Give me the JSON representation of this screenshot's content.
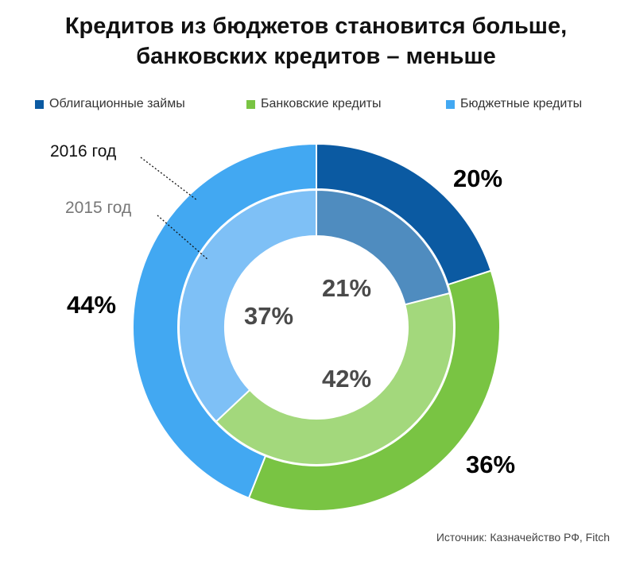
{
  "title_line1": "Кредитов из бюджетов становится больше,",
  "title_line2": "банковских кредитов – меньше",
  "source": "Источник: Казначейство РФ, Fitch",
  "chart_data": {
    "type": "donut",
    "legend": [
      {
        "name": "Облигационные займы",
        "color": "#0b5aa2"
      },
      {
        "name": "Банковские кредиты",
        "color": "#79c443"
      },
      {
        "name": "Бюджетные кредиты",
        "color": "#42a8f2"
      }
    ],
    "categories": [
      "Облигационные займы",
      "Банковские кредиты",
      "Бюджетные кредиты"
    ],
    "series": [
      {
        "name": "2016 год",
        "ring": "outer",
        "values": [
          20,
          36,
          44
        ],
        "labels": [
          "20%",
          "36%",
          "44%"
        ],
        "colors": [
          "#0b5aa2",
          "#79c443",
          "#42a8f2"
        ]
      },
      {
        "name": "2015 год",
        "ring": "inner",
        "values": [
          21,
          42,
          37
        ],
        "labels": [
          "21%",
          "42%",
          "37%"
        ],
        "colors": [
          "#4f8cbf",
          "#a3d87c",
          "#7ec0f6"
        ]
      }
    ]
  }
}
